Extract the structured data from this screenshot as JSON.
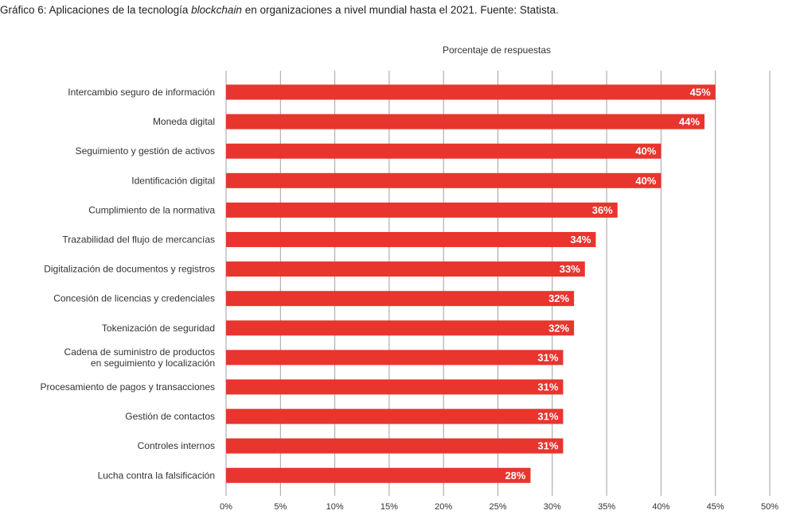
{
  "chart_data": {
    "type": "bar",
    "orientation": "horizontal",
    "title_prefix": "Gráfico 6: Aplicaciones de la tecnología ",
    "title_emphasis": "blockchain",
    "title_suffix": " en organizaciones a nivel mundial hasta el 2021. Fuente: Statista.",
    "xlabel": "Porcentaje de respuestas",
    "ylabel": "",
    "xlim": [
      0,
      50
    ],
    "ticks": [
      0,
      5,
      10,
      15,
      20,
      25,
      30,
      35,
      40,
      45,
      50
    ],
    "tick_suffix": "%",
    "grid": true,
    "bar_color": "#e8352e",
    "grid_color": "#a0a0a0",
    "categories": [
      [
        "Intercambio seguro de información"
      ],
      [
        "Moneda digital"
      ],
      [
        "Seguimiento y gestión de activos"
      ],
      [
        "Identificación digital"
      ],
      [
        "Cumplimiento de la normativa"
      ],
      [
        "Trazabilidad del flujo de mercancías"
      ],
      [
        "Digitalización de documentos y registros"
      ],
      [
        "Concesión de licencias y credenciales"
      ],
      [
        "Tokenización de seguridad"
      ],
      [
        "Cadena de suministro de productos",
        "en seguimiento y localización"
      ],
      [
        "Procesamiento de pagos y transacciones"
      ],
      [
        "Gestión de contactos"
      ],
      [
        "Controles internos"
      ],
      [
        "Lucha contra la falsificación"
      ]
    ],
    "values": [
      45,
      44,
      40,
      40,
      36,
      34,
      33,
      32,
      32,
      31,
      31,
      31,
      31,
      28
    ]
  }
}
